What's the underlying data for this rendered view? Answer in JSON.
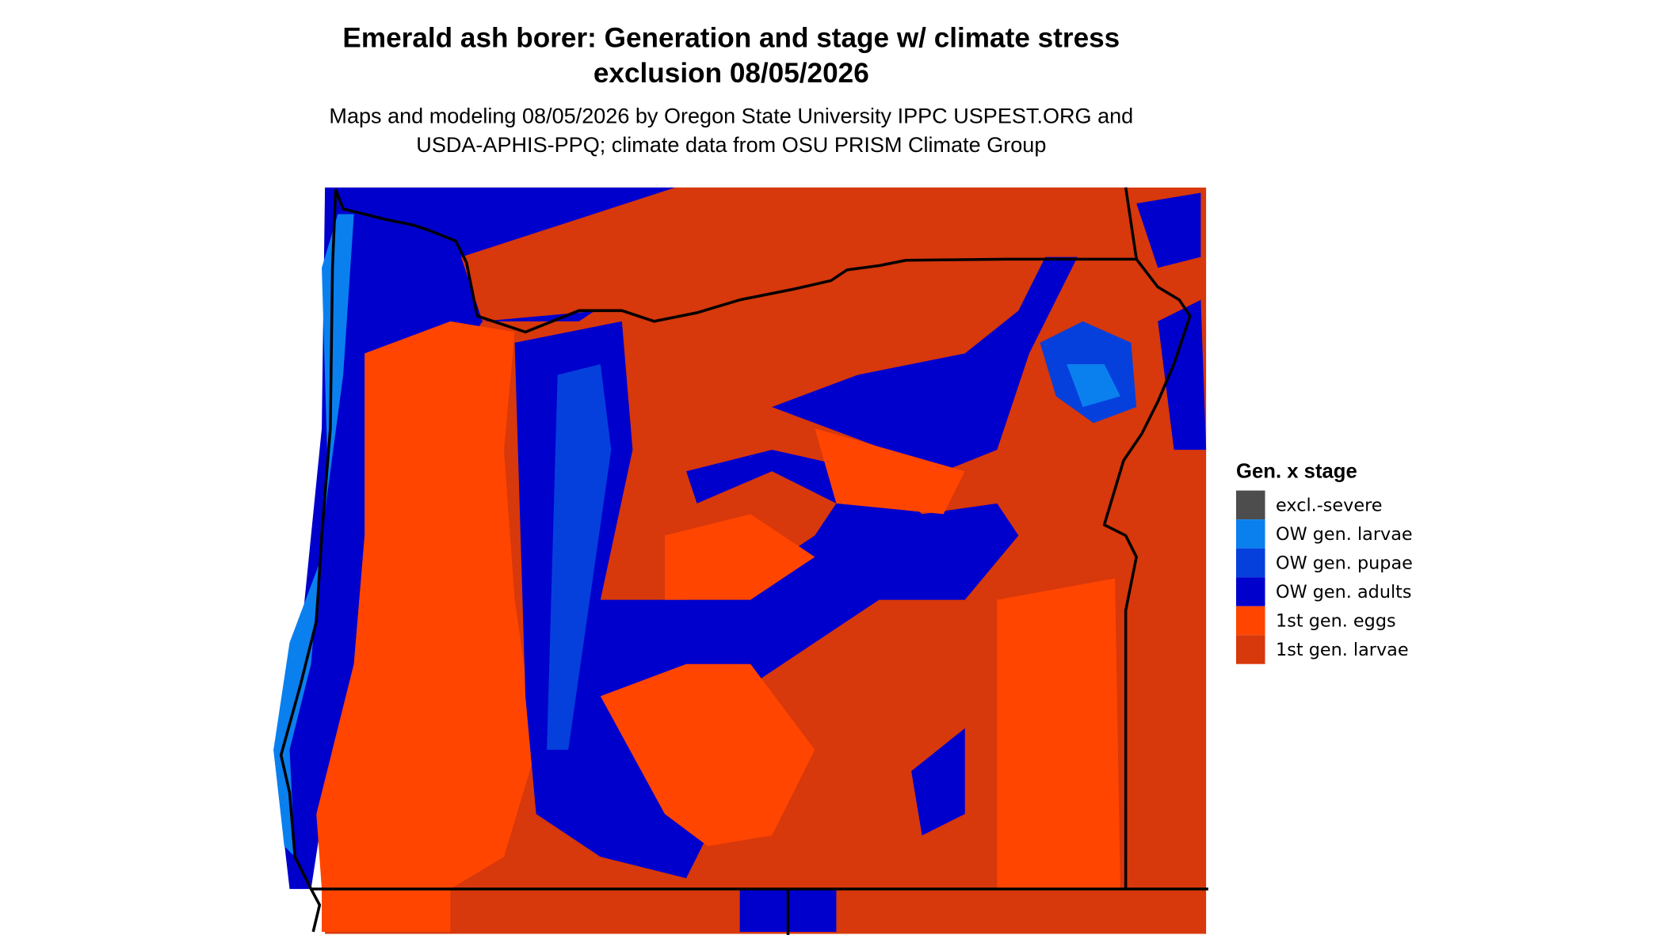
{
  "header": {
    "title_lines": [
      "Emerald ash borer: Generation and stage w/ climate stress",
      "exclusion 08/05/2026"
    ],
    "subtitle_lines": [
      "Maps and modeling 08/05/2026 by Oregon State University IPPC USPEST.ORG and",
      "USDA-APHIS-PPQ; climate data from OSU PRISM Climate Group"
    ]
  },
  "legend": {
    "title": "Gen. x stage",
    "items": [
      {
        "label": "excl.-severe",
        "color": "#4d4d4d"
      },
      {
        "label": "OW gen. larvae",
        "color": "#0a80ef"
      },
      {
        "label": "OW gen. pupae",
        "color": "#0540dd"
      },
      {
        "label": "OW gen. adults",
        "color": "#0000cd"
      },
      {
        "label": "1st gen. eggs",
        "color": "#ff4500"
      },
      {
        "label": "1st gen. larvae",
        "color": "#d7380c"
      }
    ]
  }
}
